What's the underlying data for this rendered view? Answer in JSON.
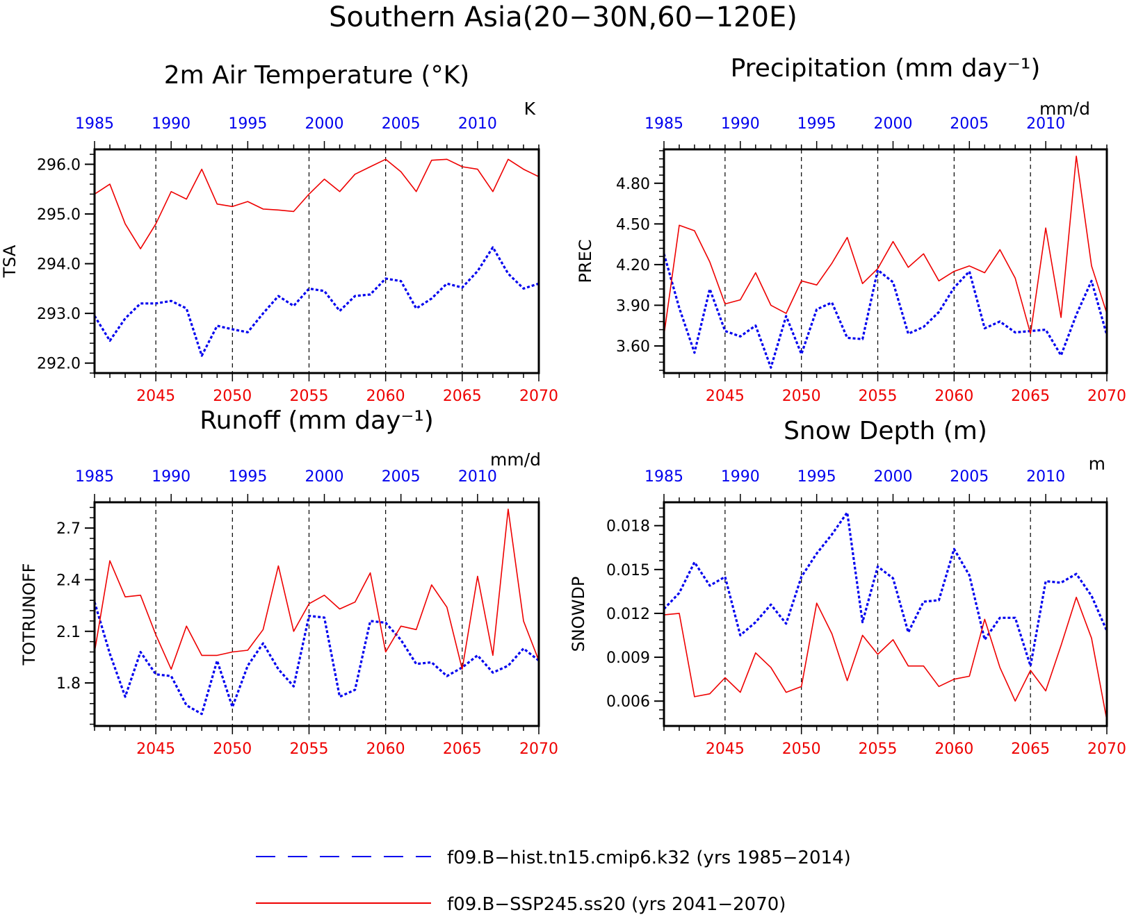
{
  "figure": {
    "title": "Southern Asia(20−30N,60−120E)",
    "colors": {
      "hist": "#0000ee",
      "ssp": "#ee0000",
      "axis": "#000000"
    }
  },
  "legend": {
    "placement": "bottom-center",
    "entries": [
      {
        "text": "f09.B−hist.tn15.cmip6.k32 (yrs 1985−2014)",
        "color": "#0000ee",
        "style": "dashed"
      },
      {
        "text": "f09.B−SSP245.ss20 (yrs 2041−2070)",
        "color": "#ee0000",
        "style": "solid"
      }
    ]
  },
  "chart_data": [
    {
      "type": "line",
      "title": "2m Air Temperature (°K)",
      "ylabel": "TSA",
      "units": "K",
      "ylim": [
        291.8,
        296.3
      ],
      "yticks": [
        292.0,
        293.0,
        294.0,
        295.0,
        296.0
      ],
      "ytick_labels": [
        "292.0",
        "293.0",
        "294.0",
        "295.0",
        "296.0"
      ],
      "top_axis": {
        "ticks": [
          1985,
          1990,
          1995,
          2000,
          2005,
          2010
        ],
        "labels": [
          "1985",
          "1990",
          "1995",
          "2000",
          "2005",
          "2010"
        ]
      },
      "bottom_axis": {
        "ticks": [
          2045,
          2050,
          2055,
          2060,
          2065,
          2070
        ],
        "labels": [
          "2045",
          "2050",
          "2055",
          "2060",
          "2065",
          "2070"
        ]
      },
      "series": [
        {
          "key": "hist",
          "x_axis": "top",
          "x": [
            1985,
            1986,
            1987,
            1988,
            1989,
            1990,
            1991,
            1992,
            1993,
            1994,
            1995,
            1996,
            1997,
            1998,
            1999,
            2000,
            2001,
            2002,
            2003,
            2004,
            2005,
            2006,
            2007,
            2008,
            2009,
            2010,
            2011,
            2012,
            2013,
            2014
          ],
          "values": [
            292.95,
            292.45,
            292.9,
            293.2,
            293.2,
            293.25,
            293.1,
            292.15,
            292.75,
            292.68,
            292.62,
            293.0,
            293.35,
            293.15,
            293.5,
            293.45,
            293.05,
            293.35,
            293.38,
            293.7,
            293.65,
            293.1,
            293.3,
            293.6,
            293.52,
            293.85,
            294.33,
            293.8,
            293.5,
            293.6
          ]
        },
        {
          "key": "ssp",
          "x_axis": "bottom",
          "x": [
            2041,
            2042,
            2043,
            2044,
            2045,
            2046,
            2047,
            2048,
            2049,
            2050,
            2051,
            2052,
            2053,
            2054,
            2055,
            2056,
            2057,
            2058,
            2059,
            2060,
            2061,
            2062,
            2063,
            2064,
            2065,
            2066,
            2067,
            2068,
            2069,
            2070
          ],
          "values": [
            295.4,
            295.6,
            294.8,
            294.3,
            294.8,
            295.45,
            295.3,
            295.9,
            295.2,
            295.15,
            295.25,
            295.1,
            295.08,
            295.05,
            295.4,
            295.7,
            295.45,
            295.8,
            295.95,
            296.1,
            295.85,
            295.45,
            296.08,
            296.1,
            295.95,
            295.9,
            295.45,
            296.1,
            295.9,
            295.75
          ]
        }
      ]
    },
    {
      "type": "line",
      "title": "Precipitation (mm day⁻¹)",
      "ylabel": "PREC",
      "units": "mm/d",
      "ylim": [
        3.4,
        5.05
      ],
      "yticks": [
        3.6,
        3.9,
        4.2,
        4.5,
        4.8
      ],
      "ytick_labels": [
        "3.60",
        "3.90",
        "4.20",
        "4.50",
        "4.80"
      ],
      "top_axis": {
        "ticks": [
          1985,
          1990,
          1995,
          2000,
          2005,
          2010
        ],
        "labels": [
          "1985",
          "1990",
          "1995",
          "2000",
          "2005",
          "2010"
        ]
      },
      "bottom_axis": {
        "ticks": [
          2045,
          2050,
          2055,
          2060,
          2065,
          2070
        ],
        "labels": [
          "2045",
          "2050",
          "2055",
          "2060",
          "2065",
          "2070"
        ]
      },
      "series": [
        {
          "key": "hist",
          "x_axis": "top",
          "x": [
            1985,
            1986,
            1987,
            1988,
            1989,
            1990,
            1991,
            1992,
            1993,
            1994,
            1995,
            1996,
            1997,
            1998,
            1999,
            2000,
            2001,
            2002,
            2003,
            2004,
            2005,
            2006,
            2007,
            2008,
            2009,
            2010,
            2011,
            2012,
            2013,
            2014
          ],
          "values": [
            4.28,
            3.88,
            3.55,
            4.02,
            3.71,
            3.67,
            3.75,
            3.44,
            3.82,
            3.54,
            3.87,
            3.92,
            3.66,
            3.65,
            4.16,
            4.07,
            3.69,
            3.74,
            3.85,
            4.03,
            4.15,
            3.73,
            3.78,
            3.7,
            3.71,
            3.72,
            3.53,
            3.83,
            4.08,
            3.68
          ]
        },
        {
          "key": "ssp",
          "x_axis": "bottom",
          "x": [
            2041,
            2042,
            2043,
            2044,
            2045,
            2046,
            2047,
            2048,
            2049,
            2050,
            2051,
            2052,
            2053,
            2054,
            2055,
            2056,
            2057,
            2058,
            2059,
            2060,
            2061,
            2062,
            2063,
            2064,
            2065,
            2066,
            2067,
            2068,
            2069,
            2070
          ],
          "values": [
            3.68,
            4.49,
            4.45,
            4.22,
            3.91,
            3.94,
            4.14,
            3.9,
            3.84,
            4.08,
            4.05,
            4.21,
            4.4,
            4.06,
            4.17,
            4.37,
            4.18,
            4.28,
            4.08,
            4.15,
            4.19,
            4.14,
            4.31,
            4.1,
            3.69,
            4.47,
            3.81,
            5.0,
            4.19,
            3.84
          ]
        }
      ]
    },
    {
      "type": "line",
      "title": "Runoff (mm day⁻¹)",
      "ylabel": "TOTRUNOFF",
      "units": "mm/d",
      "ylim": [
        1.55,
        2.85
      ],
      "yticks": [
        1.8,
        2.1,
        2.4,
        2.7
      ],
      "ytick_labels": [
        "1.8",
        "2.1",
        "2.4",
        "2.7"
      ],
      "top_axis": {
        "ticks": [
          1985,
          1990,
          1995,
          2000,
          2005,
          2010
        ],
        "labels": [
          "1985",
          "1990",
          "1995",
          "2000",
          "2005",
          "2010"
        ]
      },
      "bottom_axis": {
        "ticks": [
          2045,
          2050,
          2055,
          2060,
          2065,
          2070
        ],
        "labels": [
          "2045",
          "2050",
          "2055",
          "2060",
          "2065",
          "2070"
        ]
      },
      "series": [
        {
          "key": "hist",
          "x_axis": "top",
          "x": [
            1985,
            1986,
            1987,
            1988,
            1989,
            1990,
            1991,
            1992,
            1993,
            1994,
            1995,
            1996,
            1997,
            1998,
            1999,
            2000,
            2001,
            2002,
            2003,
            2004,
            2005,
            2006,
            2007,
            2008,
            2009,
            2010,
            2011,
            2012,
            2013,
            2014
          ],
          "values": [
            2.27,
            1.97,
            1.72,
            1.98,
            1.85,
            1.84,
            1.67,
            1.62,
            1.93,
            1.66,
            1.9,
            2.03,
            1.88,
            1.78,
            2.19,
            2.18,
            1.72,
            1.76,
            2.16,
            2.15,
            2.05,
            1.91,
            1.92,
            1.84,
            1.89,
            1.96,
            1.86,
            1.9,
            2.0,
            1.93
          ]
        },
        {
          "key": "ssp",
          "x_axis": "bottom",
          "x": [
            2041,
            2042,
            2043,
            2044,
            2045,
            2046,
            2047,
            2048,
            2049,
            2050,
            2051,
            2052,
            2053,
            2054,
            2055,
            2056,
            2057,
            2058,
            2059,
            2060,
            2061,
            2062,
            2063,
            2064,
            2065,
            2066,
            2067,
            2068,
            2069,
            2070
          ],
          "values": [
            1.98,
            2.51,
            2.3,
            2.31,
            2.08,
            1.88,
            2.13,
            1.96,
            1.96,
            1.98,
            1.99,
            2.11,
            2.48,
            2.1,
            2.26,
            2.31,
            2.23,
            2.27,
            2.44,
            1.98,
            2.13,
            2.11,
            2.37,
            2.24,
            1.88,
            2.42,
            1.96,
            2.81,
            2.16,
            1.93
          ]
        }
      ]
    },
    {
      "type": "line",
      "title": "Snow Depth (m)",
      "ylabel": "SNOWDP",
      "units": "m",
      "ylim": [
        0.0043,
        0.0196
      ],
      "yticks": [
        0.006,
        0.009,
        0.012,
        0.015,
        0.018
      ],
      "ytick_labels": [
        "0.006",
        "0.009",
        "0.012",
        "0.015",
        "0.018"
      ],
      "top_axis": {
        "ticks": [
          1985,
          1990,
          1995,
          2000,
          2005,
          2010
        ],
        "labels": [
          "1985",
          "1990",
          "1995",
          "2000",
          "2005",
          "2010"
        ]
      },
      "bottom_axis": {
        "ticks": [
          2045,
          2050,
          2055,
          2060,
          2065,
          2070
        ],
        "labels": [
          "2045",
          "2050",
          "2055",
          "2060",
          "2065",
          "2070"
        ]
      },
      "series": [
        {
          "key": "hist",
          "x_axis": "top",
          "x": [
            1985,
            1986,
            1987,
            1988,
            1989,
            1990,
            1991,
            1992,
            1993,
            1994,
            1995,
            1996,
            1997,
            1998,
            1999,
            2000,
            2001,
            2002,
            2003,
            2004,
            2005,
            2006,
            2007,
            2008,
            2009,
            2010,
            2011,
            2012,
            2013,
            2014
          ],
          "values": [
            0.0123,
            0.0134,
            0.0155,
            0.0139,
            0.0145,
            0.0105,
            0.0114,
            0.0126,
            0.0113,
            0.0145,
            0.0161,
            0.0174,
            0.0189,
            0.0114,
            0.0152,
            0.0144,
            0.0107,
            0.0128,
            0.0129,
            0.0164,
            0.0146,
            0.0102,
            0.0117,
            0.0117,
            0.0084,
            0.0142,
            0.0141,
            0.0147,
            0.0132,
            0.0108
          ]
        },
        {
          "key": "ssp",
          "x_axis": "bottom",
          "x": [
            2041,
            2042,
            2043,
            2044,
            2045,
            2046,
            2047,
            2048,
            2049,
            2050,
            2051,
            2052,
            2053,
            2054,
            2055,
            2056,
            2057,
            2058,
            2059,
            2060,
            2061,
            2062,
            2063,
            2064,
            2065,
            2066,
            2067,
            2068,
            2069,
            2070
          ],
          "values": [
            0.0119,
            0.012,
            0.0063,
            0.0065,
            0.0076,
            0.0066,
            0.0093,
            0.0083,
            0.0066,
            0.007,
            0.0127,
            0.0106,
            0.0074,
            0.0105,
            0.0092,
            0.0102,
            0.0084,
            0.0084,
            0.007,
            0.0075,
            0.0077,
            0.0116,
            0.0083,
            0.006,
            0.0081,
            0.0067,
            0.0098,
            0.0131,
            0.0103,
            0.0047
          ]
        }
      ]
    }
  ]
}
